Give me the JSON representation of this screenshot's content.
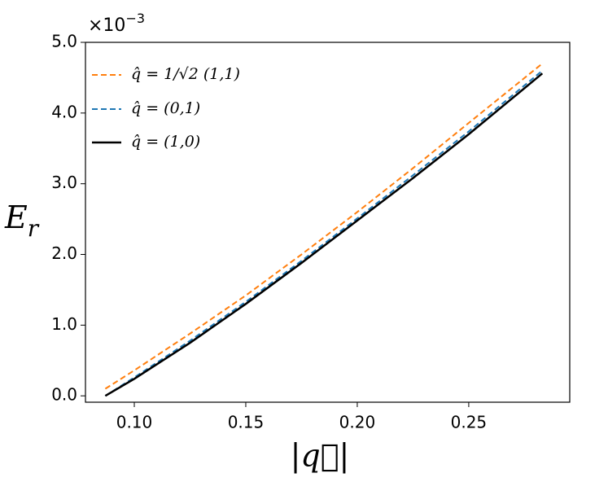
{
  "chart_data": {
    "type": "line",
    "x_label": "|q⃗|",
    "y_label": {
      "main": "E",
      "sub": "r"
    },
    "y_multiplier": {
      "base": "×10",
      "exp": "−3"
    },
    "xlim": [
      0.0781,
      0.2953
    ],
    "ylim": [
      -0.09,
      5.0
    ],
    "xticks": [
      {
        "value": 0.1,
        "label": "0.10"
      },
      {
        "value": 0.15,
        "label": "0.15"
      },
      {
        "value": 0.2,
        "label": "0.20"
      },
      {
        "value": 0.25,
        "label": "0.25"
      }
    ],
    "yticks": [
      {
        "value": 0,
        "label": "0.0"
      },
      {
        "value": 1,
        "label": "1.0"
      },
      {
        "value": 2,
        "label": "2.0"
      },
      {
        "value": 3,
        "label": "3.0"
      },
      {
        "value": 4,
        "label": "4.0"
      },
      {
        "value": 5,
        "label": "5.0"
      }
    ],
    "legend": "upper left",
    "x": [
      0.087,
      0.1,
      0.125,
      0.15,
      0.175,
      0.2,
      0.225,
      0.25,
      0.283
    ],
    "series": [
      {
        "name": "q̂ = 1/√2 (1,1)",
        "color": "#ff7f0e",
        "dash": true,
        "values": [
          0.1,
          0.36,
          0.88,
          1.42,
          2.0,
          2.6,
          3.22,
          3.86,
          4.7
        ]
      },
      {
        "name": "q̂ = (0,1)",
        "color": "#1f77b4",
        "dash": true,
        "values": [
          0.0,
          0.26,
          0.78,
          1.33,
          1.91,
          2.51,
          3.12,
          3.74,
          4.6
        ]
      },
      {
        "name": "q̂ = (1,0)",
        "color": "#000000",
        "dash": false,
        "values": [
          0.0,
          0.24,
          0.75,
          1.3,
          1.88,
          2.48,
          3.08,
          3.7,
          4.56
        ]
      }
    ]
  }
}
